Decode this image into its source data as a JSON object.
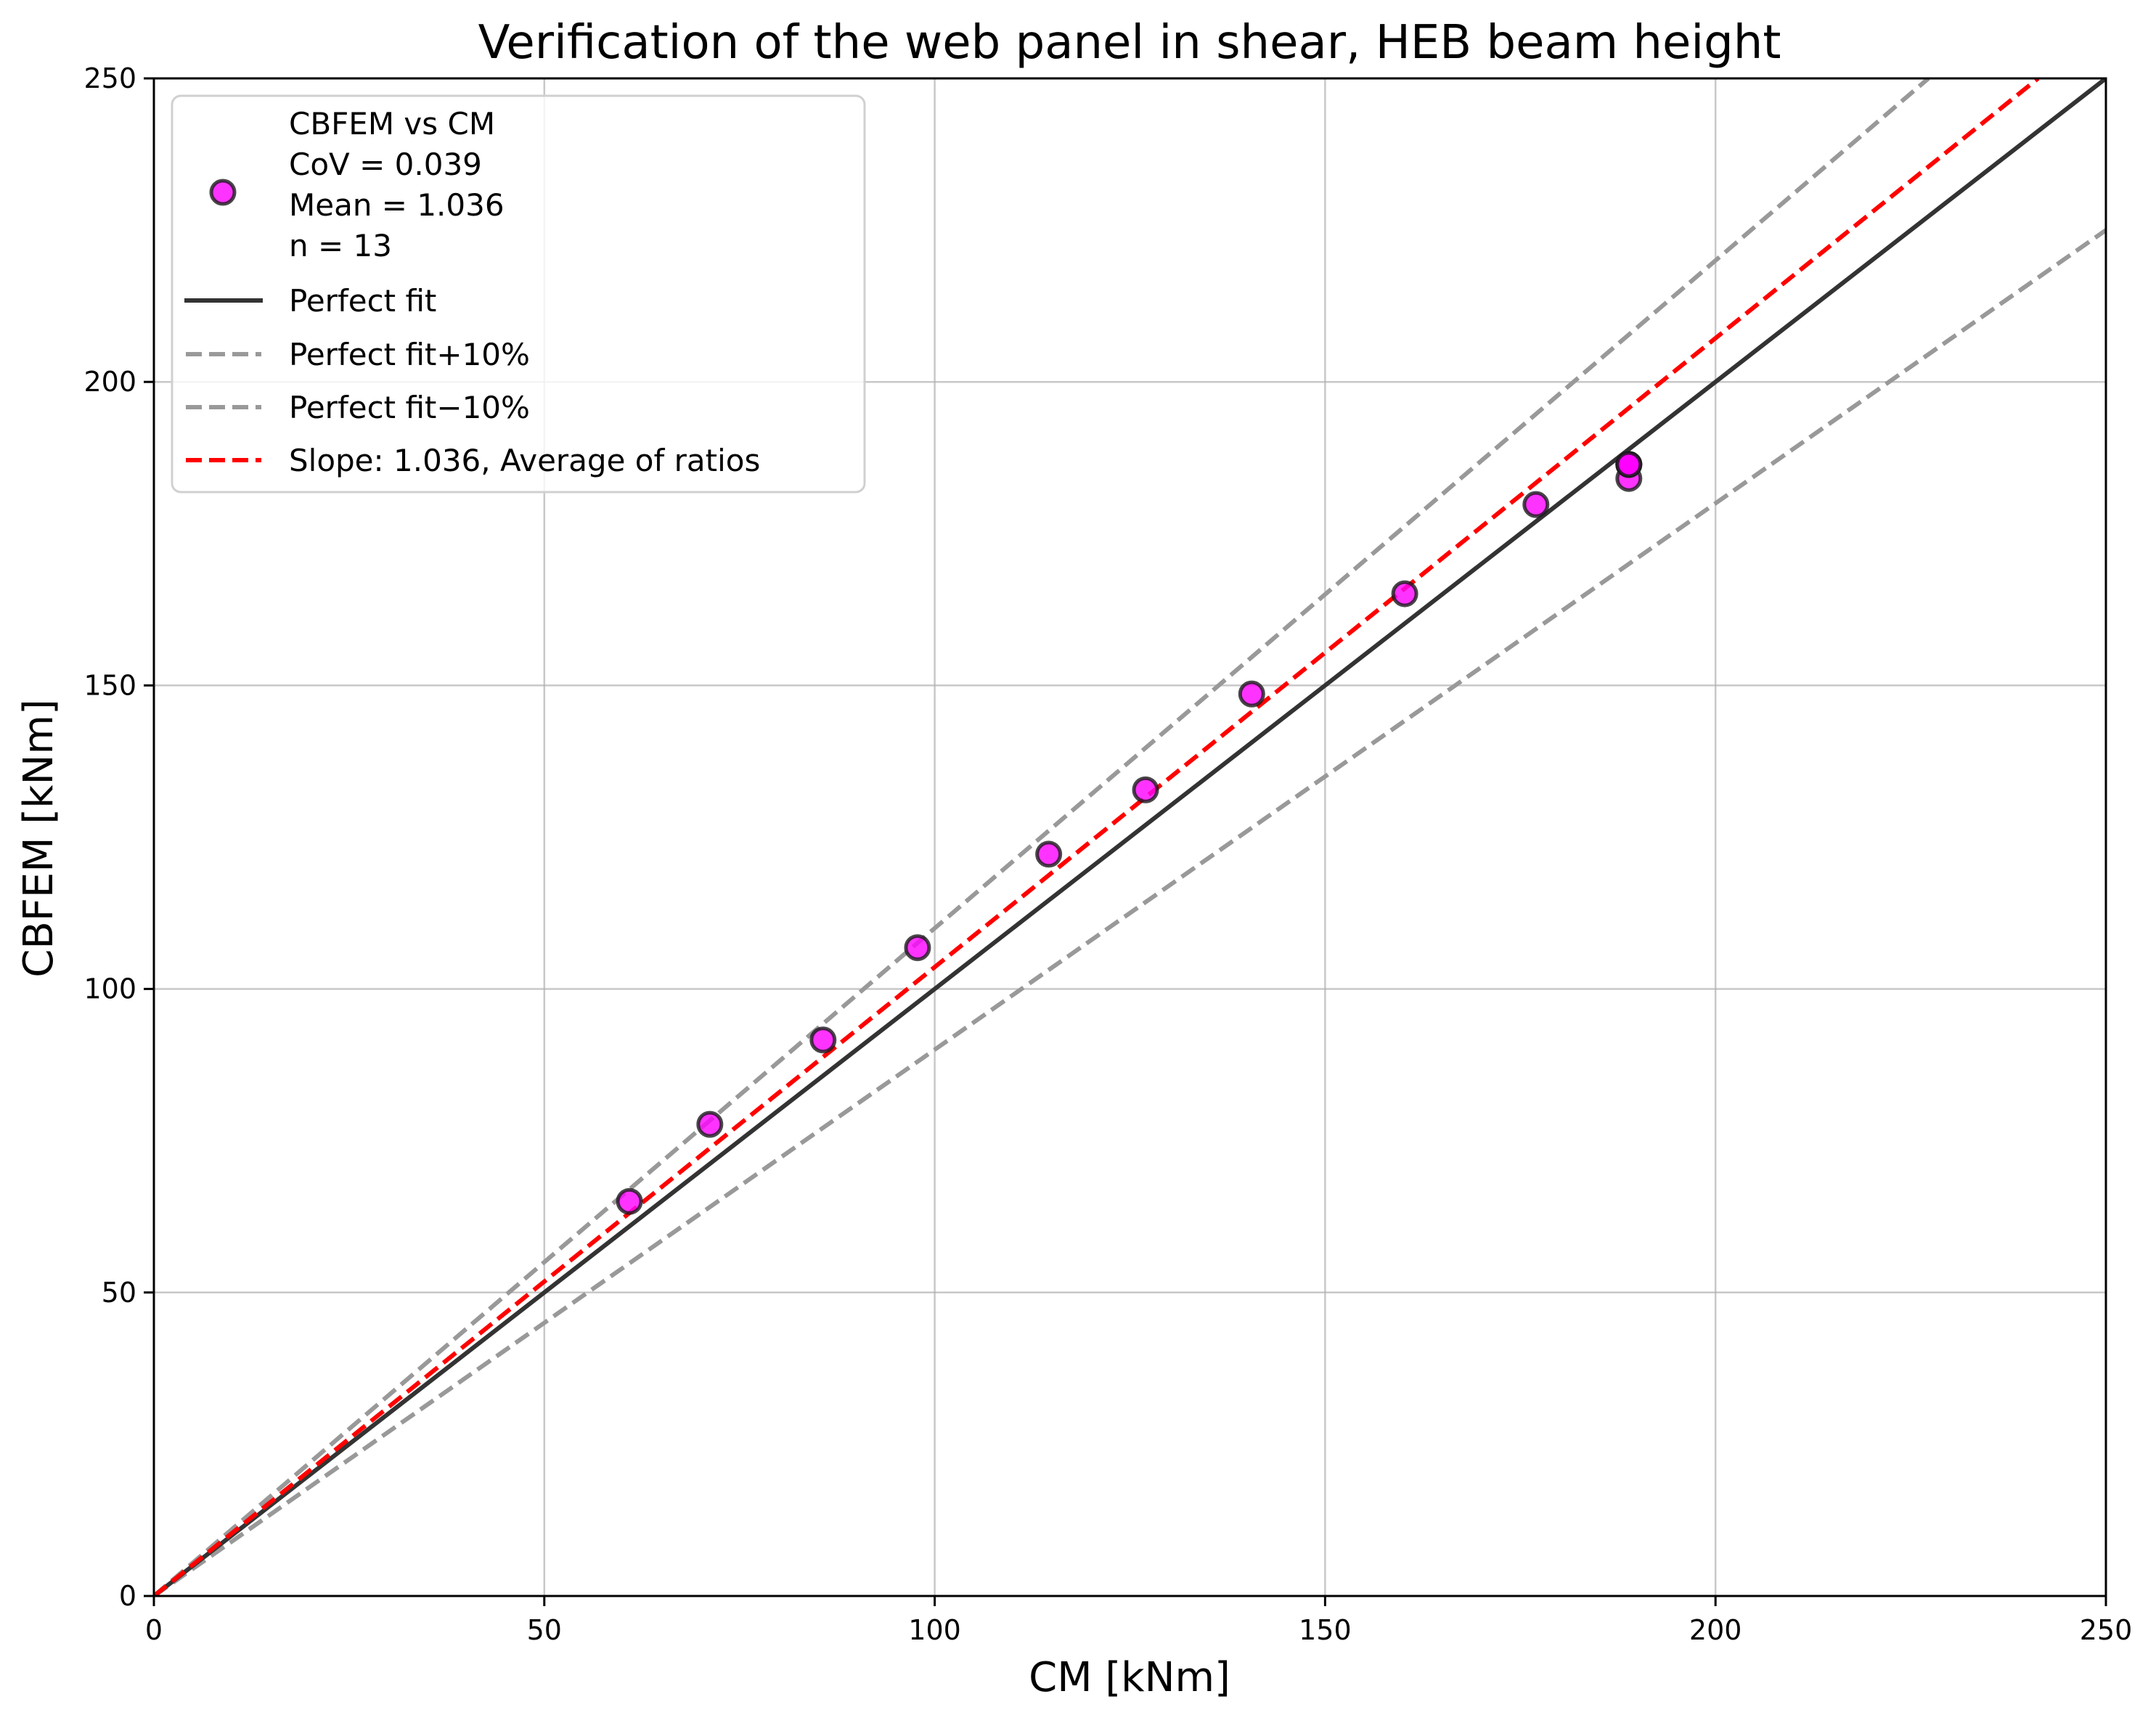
{
  "chart_data": {
    "type": "scatter",
    "title": "Verification of the web panel in shear, HEB beam height",
    "xlabel": "CM [kNm]",
    "ylabel": "CBFEM [kNm]",
    "xlim": [
      0,
      250
    ],
    "ylim": [
      0,
      250
    ],
    "xticks": [
      0,
      50,
      100,
      150,
      200,
      250
    ],
    "yticks": [
      0,
      50,
      100,
      150,
      200,
      250
    ],
    "grid": true,
    "legend_position": "upper left",
    "series": [
      {
        "name": "CBFEM vs CM",
        "kind": "scatter",
        "marker_color": "#ff00ff",
        "edge_color": "#1a1a1a",
        "stats": {
          "CoV": "0.039",
          "Mean": "1.036",
          "n": "13"
        },
        "x": [
          60.9,
          71.2,
          85.7,
          97.8,
          114.6,
          127.0,
          140.6,
          160.2,
          177.0,
          188.9,
          188.9,
          188.9,
          188.9
        ],
        "y": [
          65.0,
          77.7,
          91.6,
          106.8,
          122.2,
          132.8,
          148.6,
          165.1,
          179.8,
          184.1,
          186.4,
          186.4,
          186.4
        ]
      },
      {
        "name": "Perfect fit",
        "kind": "line",
        "slope": 1.0,
        "color": "#333333",
        "style": "solid"
      },
      {
        "name": "Perfect fit+10%",
        "kind": "line",
        "slope": 1.1,
        "color": "#999999",
        "style": "dashed"
      },
      {
        "name": "Perfect fit−10%",
        "kind": "line",
        "slope": 0.9,
        "color": "#999999",
        "style": "dashed"
      },
      {
        "name": "Slope: 1.036, Average of ratios",
        "kind": "line",
        "slope": 1.036,
        "color": "#ff0000",
        "style": "dashed"
      }
    ]
  },
  "legend": {
    "scatter_lines": [
      "CBFEM vs CM",
      "CoV = 0.039",
      "Mean = 1.036",
      "n = 13"
    ],
    "perfect_fit": "Perfect fit",
    "plus10": "Perfect fit+10%",
    "minus10": "Perfect fit−10%",
    "slope": "Slope: 1.036, Average of ratios"
  }
}
